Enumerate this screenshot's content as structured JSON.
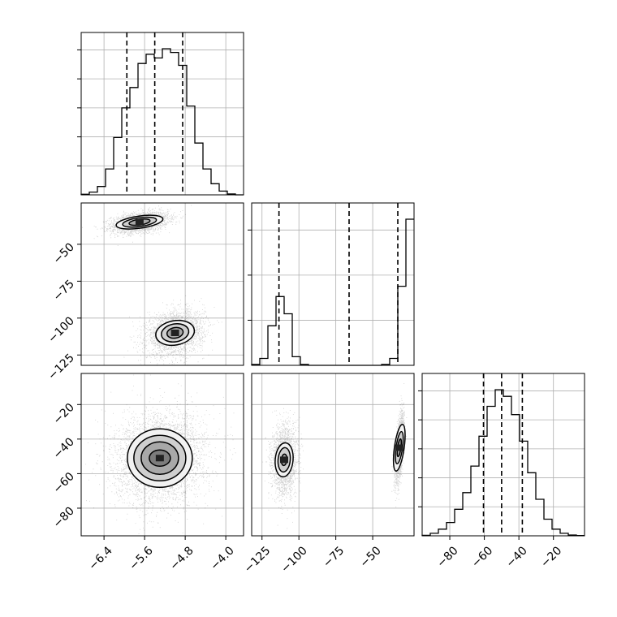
{
  "chart_data": {
    "type": "corner",
    "grid": true,
    "params": [
      {
        "range": [
          -6.85,
          -3.65
        ],
        "ticks": [
          -6.4,
          -5.6,
          -4.8,
          -4.0
        ],
        "tick_labels": [
          "−6.4",
          "−5.6",
          "−4.8",
          "−4.0"
        ]
      },
      {
        "range": [
          -132,
          -22
        ],
        "ticks": [
          -125,
          -100,
          -75,
          -50
        ],
        "tick_labels": [
          "−125",
          "−100",
          "−75",
          "−50"
        ]
      },
      {
        "range": [
          -96,
          -2
        ],
        "ticks": [
          -80,
          -60,
          -40,
          -20
        ],
        "tick_labels": [
          "−80",
          "−60",
          "−40",
          "−20"
        ]
      }
    ],
    "histograms": [
      {
        "param": 0,
        "edges": [
          -6.85,
          -6.69,
          -6.53,
          -6.37,
          -6.21,
          -6.05,
          -5.89,
          -5.73,
          -5.57,
          -5.41,
          -5.25,
          -5.09,
          -4.93,
          -4.77,
          -4.61,
          -4.45,
          -4.29,
          -4.13,
          -3.97,
          -3.81,
          -3.65
        ],
        "counts": [
          0.3,
          1.5,
          4.5,
          14,
          31,
          47,
          58,
          71,
          76,
          74,
          79,
          77,
          70,
          48,
          28,
          14,
          6,
          2,
          0.5,
          0
        ],
        "quantiles": [
          -5.95,
          -5.4,
          -4.85
        ]
      },
      {
        "param": 1,
        "edges": [
          -132,
          -126.5,
          -121,
          -115.5,
          -110,
          -104.5,
          -99,
          -93.5,
          -88,
          -82.5,
          -77,
          -71.5,
          -66,
          -60.5,
          -55,
          -49.5,
          -44,
          -38.5,
          -33,
          -27.5,
          -22
        ],
        "counts": [
          1,
          8,
          46,
          80,
          60,
          10,
          1,
          0,
          0,
          0,
          0,
          0,
          0,
          0,
          0,
          0,
          1,
          8,
          92,
          170
        ],
        "quantiles": [
          -113.5,
          -66,
          -33
        ]
      },
      {
        "param": 2,
        "edges": [
          -96,
          -91.3,
          -86.6,
          -81.9,
          -77.2,
          -72.5,
          -67.8,
          -63.1,
          -58.4,
          -53.7,
          -49,
          -44.3,
          -39.6,
          -34.9,
          -30.2,
          -25.5,
          -20.8,
          -16.1,
          -11.4,
          -6.7,
          -2
        ],
        "counts": [
          0.3,
          1.5,
          4,
          8,
          16,
          26,
          42,
          60,
          78,
          88,
          84,
          73,
          57,
          38,
          22,
          10,
          4,
          1.5,
          0.5,
          0.2
        ],
        "quantiles": [
          -60.5,
          -50,
          -38
        ]
      }
    ],
    "pairs": [
      {
        "x": 0,
        "y": 1,
        "modes": [
          {
            "cx": -5.7,
            "cy": -35
          },
          {
            "cx": -5.0,
            "cy": -110
          }
        ]
      },
      {
        "x": 0,
        "y": 2,
        "modes": [
          {
            "cx": -5.3,
            "cy": -51
          }
        ]
      },
      {
        "x": 1,
        "y": 2,
        "modes": [
          {
            "cx": -110,
            "cy": -52
          },
          {
            "cx": -32,
            "cy": -45
          }
        ]
      }
    ]
  }
}
